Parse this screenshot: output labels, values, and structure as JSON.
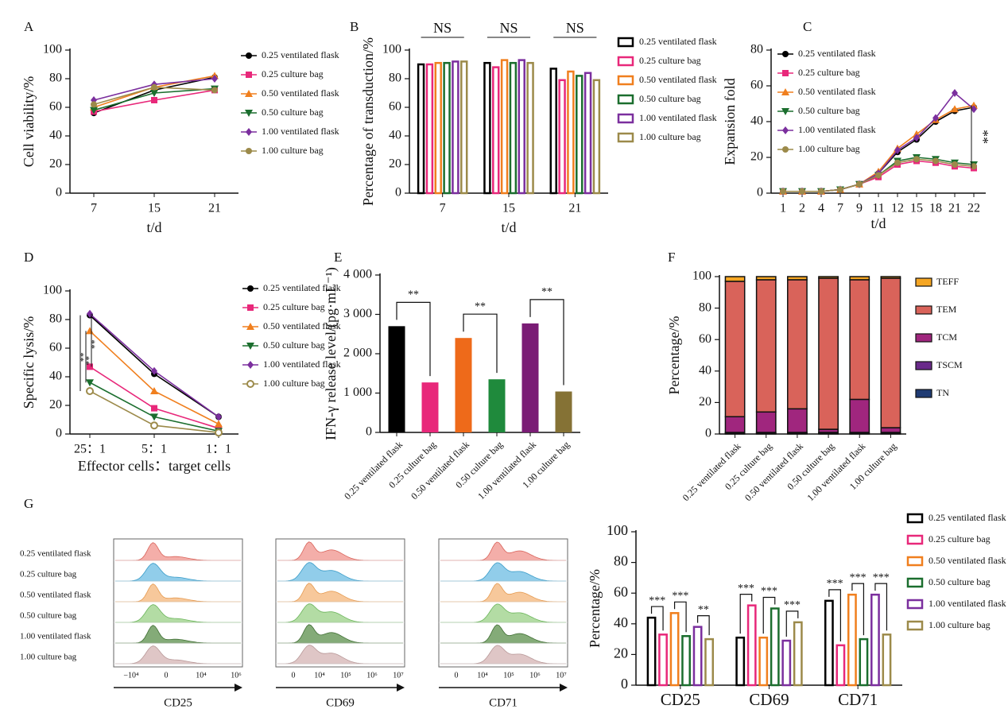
{
  "chart_data": [
    {
      "panel": "A",
      "type": "line",
      "categories": [
        "7",
        "15",
        "21"
      ],
      "xlabel": "t/d",
      "ylabel": "Cell viability/%",
      "ylim": [
        0,
        100
      ],
      "yticks": [
        0,
        20,
        40,
        60,
        80,
        100
      ],
      "series": [
        {
          "name": "0.25 ventilated flask",
          "color": "#000000",
          "marker": "circle",
          "values": [
            56,
            72,
            81
          ]
        },
        {
          "name": "0.25 culture bag",
          "color": "#e8287a",
          "marker": "square",
          "values": [
            57,
            65,
            72
          ]
        },
        {
          "name": "0.50 ventilated flask",
          "color": "#f07f1e",
          "marker": "triangle",
          "values": [
            60,
            74,
            82
          ]
        },
        {
          "name": "0.50 culture bag",
          "color": "#1b6e2e",
          "marker": "triangle-down",
          "values": [
            58,
            70,
            73
          ]
        },
        {
          "name": "1.00 ventilated flask",
          "color": "#7b2f9e",
          "marker": "diamond",
          "values": [
            65,
            76,
            80
          ]
        },
        {
          "name": "1.00 culture bag",
          "color": "#9c8a4a",
          "marker": "circle",
          "values": [
            62,
            74,
            72
          ]
        }
      ]
    },
    {
      "panel": "B",
      "type": "bar",
      "outline": true,
      "categories": [
        "7",
        "15",
        "21"
      ],
      "xlabel": "t/d",
      "ylabel": "Percentage of transduction/%",
      "ylim": [
        0,
        100
      ],
      "yticks": [
        0,
        20,
        40,
        60,
        80,
        100
      ],
      "annotations": [
        "NS",
        "NS",
        "NS"
      ],
      "series": [
        {
          "name": "0.25 ventilated flask",
          "color": "#000000",
          "values": [
            90,
            91,
            87
          ]
        },
        {
          "name": "0.25 culture bag",
          "color": "#e8287a",
          "values": [
            90,
            88,
            79
          ]
        },
        {
          "name": "0.50 ventilated flask",
          "color": "#f07f1e",
          "values": [
            91,
            93,
            85
          ]
        },
        {
          "name": "0.50 culture bag",
          "color": "#1b6e2e",
          "values": [
            91,
            91,
            82
          ]
        },
        {
          "name": "1.00 ventilated flask",
          "color": "#7b2f9e",
          "values": [
            92,
            93,
            84
          ]
        },
        {
          "name": "1.00 culture bag",
          "color": "#9c8a4a",
          "values": [
            92,
            91,
            79
          ]
        }
      ]
    },
    {
      "panel": "C",
      "type": "line",
      "categories": [
        "1",
        "2",
        "4",
        "7",
        "9",
        "11",
        "12",
        "15",
        "18",
        "21",
        "22"
      ],
      "xlabel": "t/d",
      "ylabel": "Expansion fold",
      "ylim": [
        0,
        80
      ],
      "yticks": [
        0,
        20,
        40,
        60,
        80
      ],
      "annotations": [
        "**"
      ],
      "series": [
        {
          "name": "0.25 ventilated flask",
          "color": "#000000",
          "marker": "circle",
          "values": [
            1,
            1,
            1,
            2,
            5,
            11,
            23,
            30,
            40,
            46,
            48
          ]
        },
        {
          "name": "0.25 culture bag",
          "color": "#e8287a",
          "marker": "square",
          "values": [
            1,
            1,
            1,
            2,
            5,
            9,
            16,
            18,
            17,
            15,
            14
          ]
        },
        {
          "name": "0.50 ventilated flask",
          "color": "#f07f1e",
          "marker": "triangle",
          "values": [
            1,
            1,
            1,
            2,
            5,
            12,
            25,
            33,
            41,
            47,
            49
          ]
        },
        {
          "name": "0.50 culture bag",
          "color": "#1b6e2e",
          "marker": "triangle-down",
          "values": [
            1,
            1,
            1,
            2,
            5,
            10,
            18,
            20,
            19,
            17,
            16
          ]
        },
        {
          "name": "1.00 ventilated flask",
          "color": "#7b2f9e",
          "marker": "diamond",
          "values": [
            1,
            1,
            1,
            2,
            5,
            11,
            24,
            31,
            42,
            56,
            47
          ]
        },
        {
          "name": "1.00 culture bag",
          "color": "#9c8a4a",
          "marker": "circle",
          "values": [
            1,
            1,
            1,
            2,
            5,
            10,
            17,
            19,
            18,
            16,
            15
          ]
        }
      ]
    },
    {
      "panel": "D",
      "type": "line",
      "categories": [
        "25：1",
        "5：1",
        "1：1"
      ],
      "xlabel": "Effector cells：target cells",
      "ylabel": "Specific lysis/%",
      "ylim": [
        0,
        100
      ],
      "yticks": [
        0,
        20,
        40,
        60,
        80,
        100
      ],
      "annotations": [
        "**",
        "**",
        "**"
      ],
      "series": [
        {
          "name": "0.25 ventilated flask",
          "color": "#000000",
          "marker": "circle",
          "values": [
            83,
            42,
            12
          ]
        },
        {
          "name": "0.25 culture bag",
          "color": "#e8287a",
          "marker": "square",
          "values": [
            47,
            18,
            4
          ]
        },
        {
          "name": "0.50 ventilated flask",
          "color": "#f07f1e",
          "marker": "triangle",
          "values": [
            72,
            30,
            7
          ]
        },
        {
          "name": "0.50 culture bag",
          "color": "#1b6e2e",
          "marker": "triangle-down",
          "values": [
            36,
            12,
            2
          ]
        },
        {
          "name": "1.00 ventilated flask",
          "color": "#7b2f9e",
          "marker": "diamond",
          "values": [
            84,
            44,
            12
          ]
        },
        {
          "name": "1.00 culture bag",
          "color": "#9c8a4a",
          "marker": "circle-open",
          "values": [
            30,
            6,
            1
          ]
        }
      ]
    },
    {
      "panel": "E",
      "type": "bar",
      "categories": [
        "0.25 ventilated flask",
        "0.25 culture bag",
        "0.50 ventilated flask",
        "0.50 culture bag",
        "1.00 ventilated flask",
        "1.00 culture bag"
      ],
      "ylabel": "IFN-γ release level/(pg·mL⁻¹)",
      "ylim": [
        0,
        4000
      ],
      "yticks": [
        0,
        {
          "value": 1000,
          "label": "1 000"
        },
        {
          "value": 2000,
          "label": "2 000"
        },
        {
          "value": 3000,
          "label": "3 000"
        },
        {
          "value": 4000,
          "label": "4 000"
        }
      ],
      "values": [
        2700,
        1270,
        2400,
        1350,
        2770,
        1040
      ],
      "colors": [
        "#000000",
        "#e8287a",
        "#ee6a1a",
        "#1f8a3c",
        "#7a1c75",
        "#857235"
      ],
      "annotations": [
        "**",
        "**",
        "**"
      ]
    },
    {
      "panel": "F",
      "type": "stacked_bar",
      "categories": [
        "0.25 ventilated flask",
        "0.25 culture bag",
        "0.50 ventilated flask",
        "0.50 culture bag",
        "1.00 ventilated flask",
        "1.00 culture bag"
      ],
      "ylabel": "Percentage/%",
      "ylim": [
        0,
        100
      ],
      "yticks": [
        0,
        20,
        40,
        60,
        80,
        100
      ],
      "series": [
        {
          "name": "TN",
          "color": "#1f3b73",
          "values": [
            0.5,
            0.5,
            0.5,
            0.5,
            0.5,
            0.5
          ]
        },
        {
          "name": "TSCM",
          "color": "#6a2a8a",
          "values": [
            0.5,
            0.5,
            0.5,
            0.5,
            0.5,
            0.5
          ]
        },
        {
          "name": "TCM",
          "color": "#a0267e",
          "values": [
            10,
            13,
            15,
            2,
            21,
            3
          ]
        },
        {
          "name": "TEM",
          "color": "#d9635a",
          "values": [
            86,
            84,
            82,
            96,
            76,
            95
          ]
        },
        {
          "name": "TEFF",
          "color": "#f5a623",
          "values": [
            3,
            2,
            2,
            1,
            2,
            1
          ]
        }
      ]
    },
    {
      "panel": "G",
      "type": "flow",
      "rows": [
        "0.25 ventilated flask",
        "0.25 culture bag",
        "0.50 ventilated flask",
        "0.50 culture bag",
        "1.00 ventilated flask",
        "1.00 culture bag"
      ],
      "panels": [
        {
          "label": "CD25",
          "ticks": [
            "−10⁴",
            "0",
            "10⁴",
            "10⁶"
          ]
        },
        {
          "label": "CD69",
          "ticks": [
            "0",
            "10⁴",
            "10⁵",
            "10⁶",
            "10⁷"
          ]
        },
        {
          "label": "CD71",
          "ticks": [
            "0",
            "10⁴",
            "10⁵",
            "10⁶",
            "10⁷"
          ]
        }
      ]
    },
    {
      "type": "bar",
      "outline": true,
      "categories": [
        "CD25",
        "CD69",
        "CD71"
      ],
      "ylabel": "Percentage/%",
      "ylim": [
        0,
        100
      ],
      "yticks": [
        0,
        20,
        40,
        60,
        80,
        100
      ],
      "annotations": [
        "***",
        "***",
        "**",
        "***",
        "***",
        "***",
        "***",
        "***",
        "***"
      ],
      "series": [
        {
          "name": "0.25 ventilated flask",
          "color": "#000000",
          "values": [
            44,
            31,
            55
          ]
        },
        {
          "name": "0.25 culture bag",
          "color": "#e8287a",
          "values": [
            33,
            52,
            26
          ]
        },
        {
          "name": "0.50 ventilated flask",
          "color": "#f07f1e",
          "values": [
            47,
            31,
            59
          ]
        },
        {
          "name": "0.50 culture bag",
          "color": "#1b6e2e",
          "values": [
            32,
            50,
            30
          ]
        },
        {
          "name": "1.00 ventilated flask",
          "color": "#7b2f9e",
          "values": [
            38,
            29,
            59
          ]
        },
        {
          "name": "1.00 culture bag",
          "color": "#9c8a4a",
          "values": [
            30,
            41,
            33
          ]
        }
      ]
    }
  ]
}
